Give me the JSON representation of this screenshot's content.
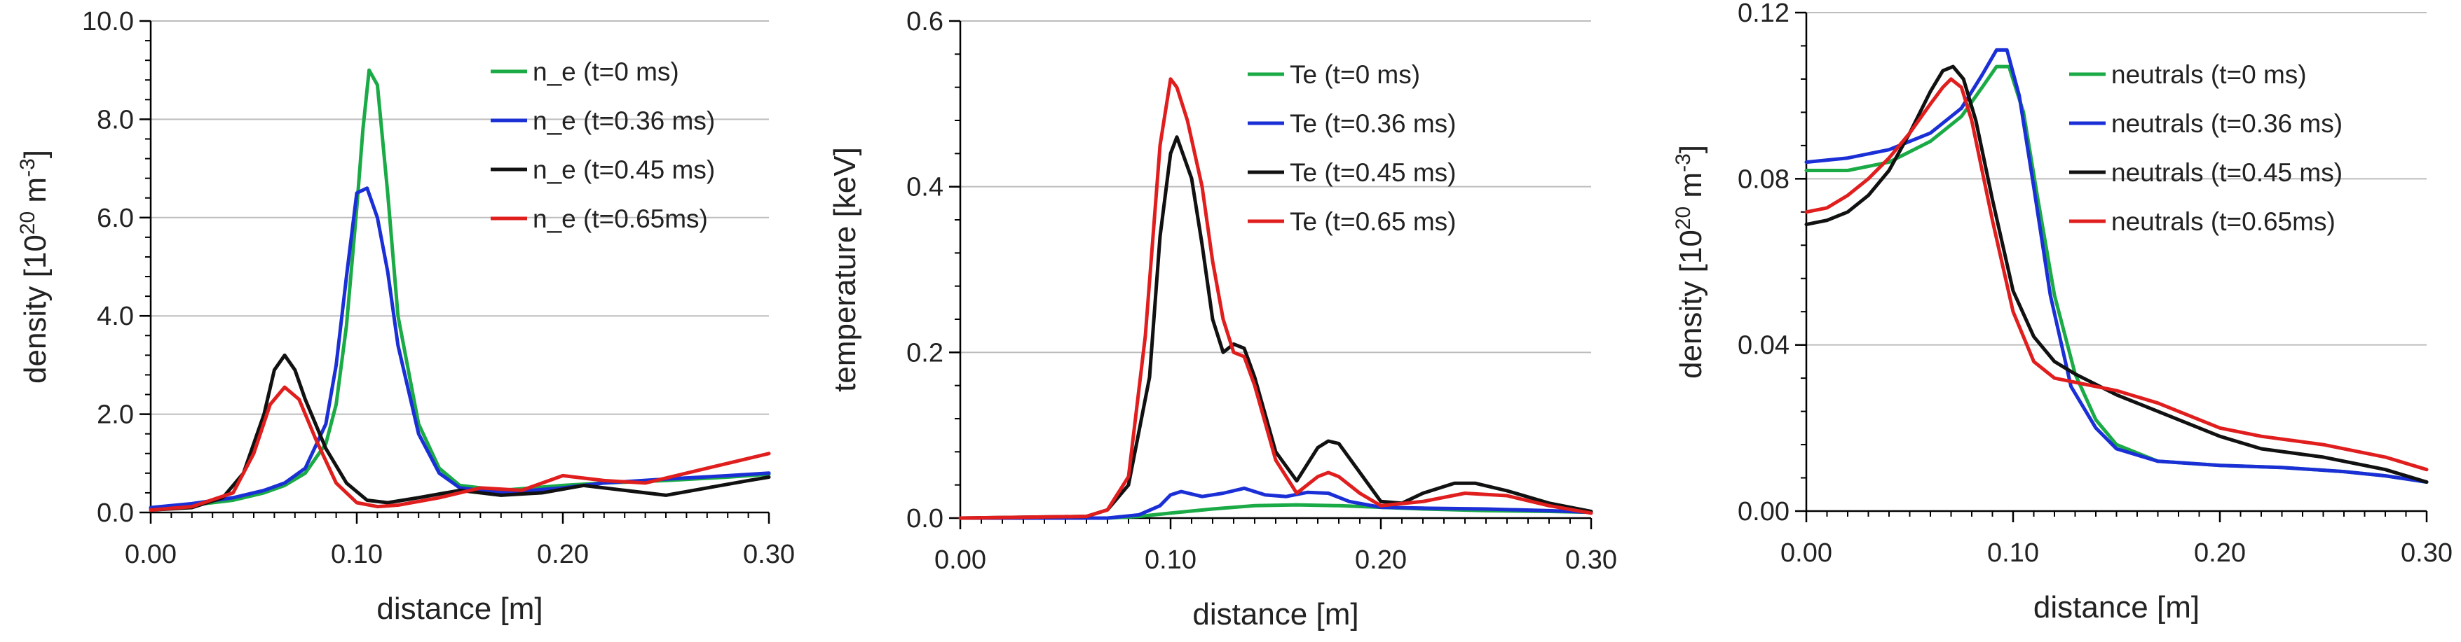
{
  "figure_caption": "",
  "chart_data": [
    {
      "type": "line",
      "title": "",
      "xlabel": "distance [m]",
      "ylabel": {
        "base": "density [10",
        "sup1": "20",
        "mid": " m",
        "sup2": "-3",
        "end": "]"
      },
      "xlim": [
        0,
        0.3
      ],
      "ylim": [
        0,
        10
      ],
      "xticks": [
        0,
        0.1,
        0.2,
        0.3
      ],
      "xtick_labels": [
        "0.00",
        "0.10",
        "0.20",
        "0.30"
      ],
      "yticks": [
        0,
        2,
        4,
        6,
        8,
        10
      ],
      "ytick_labels": [
        "0.0",
        "2.0",
        "4.0",
        "6.0",
        "8.0",
        "10.0"
      ],
      "x_minor_step": 0.01,
      "y_minor_step": 0.4,
      "grid": true,
      "legend_position": "top-right",
      "series": [
        {
          "name": "n_e (t=0 ms)",
          "color": "#1aaa46",
          "x": [
            0,
            0.02,
            0.04,
            0.055,
            0.065,
            0.075,
            0.085,
            0.09,
            0.095,
            0.1,
            0.103,
            0.106,
            0.11,
            0.115,
            0.12,
            0.13,
            0.14,
            0.15,
            0.17,
            0.2,
            0.22,
            0.25,
            0.28,
            0.3
          ],
          "y": [
            0.08,
            0.15,
            0.25,
            0.4,
            0.55,
            0.8,
            1.4,
            2.2,
            3.8,
            6.2,
            7.8,
            9.0,
            8.7,
            6.5,
            4.0,
            1.8,
            0.9,
            0.55,
            0.45,
            0.55,
            0.6,
            0.65,
            0.72,
            0.78
          ]
        },
        {
          "name": "n_e (t=0.36 ms)",
          "color": "#1a2fd6",
          "x": [
            0,
            0.02,
            0.04,
            0.055,
            0.065,
            0.075,
            0.085,
            0.09,
            0.095,
            0.1,
            0.105,
            0.11,
            0.115,
            0.12,
            0.13,
            0.14,
            0.15,
            0.17,
            0.2,
            0.22,
            0.25,
            0.28,
            0.3
          ],
          "y": [
            0.1,
            0.18,
            0.3,
            0.45,
            0.6,
            0.9,
            1.8,
            3.0,
            4.8,
            6.5,
            6.6,
            6.0,
            4.9,
            3.4,
            1.6,
            0.8,
            0.5,
            0.4,
            0.5,
            0.6,
            0.68,
            0.75,
            0.8
          ]
        },
        {
          "name": "n_e (t=0.45 ms)",
          "color": "#111111",
          "x": [
            0,
            0.02,
            0.035,
            0.045,
            0.055,
            0.06,
            0.065,
            0.07,
            0.075,
            0.085,
            0.095,
            0.105,
            0.115,
            0.13,
            0.15,
            0.17,
            0.19,
            0.21,
            0.23,
            0.25,
            0.27,
            0.29,
            0.3
          ],
          "y": [
            0.05,
            0.1,
            0.3,
            0.8,
            2.0,
            2.9,
            3.2,
            2.9,
            2.3,
            1.3,
            0.6,
            0.25,
            0.2,
            0.3,
            0.45,
            0.35,
            0.4,
            0.55,
            0.45,
            0.35,
            0.5,
            0.65,
            0.72
          ]
        },
        {
          "name": "n_e (t=0.65ms)",
          "color": "#e01e1e",
          "x": [
            0,
            0.02,
            0.04,
            0.05,
            0.058,
            0.065,
            0.072,
            0.08,
            0.09,
            0.1,
            0.11,
            0.12,
            0.14,
            0.16,
            0.18,
            0.2,
            0.22,
            0.24,
            0.26,
            0.28,
            0.3
          ],
          "y": [
            0.05,
            0.12,
            0.4,
            1.2,
            2.2,
            2.55,
            2.3,
            1.5,
            0.6,
            0.2,
            0.12,
            0.15,
            0.3,
            0.5,
            0.45,
            0.75,
            0.65,
            0.6,
            0.8,
            1.0,
            1.2
          ]
        }
      ]
    },
    {
      "type": "line",
      "title": "",
      "xlabel": "distance [m]",
      "ylabel": {
        "base": "temperature [keV]"
      },
      "xlim": [
        0,
        0.3
      ],
      "ylim": [
        0,
        0.6
      ],
      "xticks": [
        0,
        0.1,
        0.2,
        0.3
      ],
      "xtick_labels": [
        "0.00",
        "0.10",
        "0.20",
        "0.30"
      ],
      "yticks": [
        0,
        0.2,
        0.4,
        0.6
      ],
      "ytick_labels": [
        "0.0",
        "0.2",
        "0.4",
        "0.6"
      ],
      "x_minor_step": 0.01,
      "y_minor_step": 0.04,
      "grid": true,
      "legend_position": "top-right",
      "series": [
        {
          "name": "Te (t=0 ms)",
          "color": "#1aaa46",
          "x": [
            0,
            0.07,
            0.085,
            0.1,
            0.12,
            0.14,
            0.16,
            0.18,
            0.2,
            0.22,
            0.25,
            0.28,
            0.3
          ],
          "y": [
            0,
            0,
            0.002,
            0.006,
            0.011,
            0.015,
            0.016,
            0.015,
            0.013,
            0.011,
            0.009,
            0.008,
            0.007
          ]
        },
        {
          "name": "Te (t=0.36 ms)",
          "color": "#1a2fd6",
          "x": [
            0,
            0.07,
            0.085,
            0.095,
            0.1,
            0.105,
            0.115,
            0.125,
            0.135,
            0.145,
            0.155,
            0.165,
            0.175,
            0.185,
            0.2,
            0.22,
            0.25,
            0.28,
            0.3
          ],
          "y": [
            0,
            0,
            0.004,
            0.015,
            0.028,
            0.032,
            0.026,
            0.03,
            0.036,
            0.028,
            0.026,
            0.031,
            0.03,
            0.02,
            0.013,
            0.012,
            0.011,
            0.009,
            0.007
          ]
        },
        {
          "name": "Te (t=0.45 ms)",
          "color": "#111111",
          "x": [
            0,
            0.06,
            0.07,
            0.08,
            0.09,
            0.095,
            0.1,
            0.103,
            0.11,
            0.115,
            0.12,
            0.125,
            0.13,
            0.135,
            0.14,
            0.15,
            0.16,
            0.17,
            0.175,
            0.18,
            0.19,
            0.2,
            0.21,
            0.22,
            0.235,
            0.245,
            0.26,
            0.28,
            0.3
          ],
          "y": [
            0,
            0.002,
            0.01,
            0.04,
            0.17,
            0.34,
            0.44,
            0.46,
            0.41,
            0.33,
            0.24,
            0.2,
            0.21,
            0.205,
            0.17,
            0.08,
            0.045,
            0.085,
            0.093,
            0.09,
            0.055,
            0.02,
            0.018,
            0.03,
            0.042,
            0.042,
            0.033,
            0.018,
            0.008
          ]
        },
        {
          "name": "Te (t=0.65 ms)",
          "color": "#e01e1e",
          "x": [
            0,
            0.06,
            0.07,
            0.08,
            0.088,
            0.095,
            0.1,
            0.103,
            0.108,
            0.115,
            0.12,
            0.125,
            0.13,
            0.135,
            0.14,
            0.15,
            0.16,
            0.17,
            0.175,
            0.18,
            0.19,
            0.2,
            0.22,
            0.24,
            0.26,
            0.28,
            0.3
          ],
          "y": [
            0,
            0.002,
            0.01,
            0.05,
            0.22,
            0.45,
            0.53,
            0.52,
            0.48,
            0.4,
            0.31,
            0.24,
            0.2,
            0.195,
            0.16,
            0.07,
            0.03,
            0.05,
            0.055,
            0.05,
            0.03,
            0.015,
            0.02,
            0.03,
            0.027,
            0.015,
            0.006
          ]
        }
      ]
    },
    {
      "type": "line",
      "title": "",
      "xlabel": "distance [m]",
      "ylabel": {
        "base": "density [10",
        "sup1": "20",
        "mid": " m",
        "sup2": "-3",
        "end": "]"
      },
      "xlim": [
        0,
        0.3
      ],
      "ylim": [
        0,
        0.12
      ],
      "xticks": [
        0,
        0.1,
        0.2,
        0.3
      ],
      "xtick_labels": [
        "0.00",
        "0.10",
        "0.20",
        "0.30"
      ],
      "yticks": [
        0,
        0.04,
        0.08,
        0.12
      ],
      "ytick_labels": [
        "0.00",
        "0.04",
        "0.08",
        "0.12"
      ],
      "x_minor_step": 0.01,
      "y_minor_step": 0.008,
      "grid": true,
      "legend_position": "top-right",
      "series": [
        {
          "name": "neutrals (t=0 ms)",
          "color": "#1aaa46",
          "x": [
            0,
            0.02,
            0.04,
            0.06,
            0.075,
            0.085,
            0.092,
            0.098,
            0.105,
            0.112,
            0.12,
            0.13,
            0.14,
            0.15,
            0.17,
            0.2,
            0.23,
            0.26,
            0.28,
            0.3
          ],
          "y": [
            0.082,
            0.082,
            0.084,
            0.089,
            0.095,
            0.102,
            0.107,
            0.107,
            0.096,
            0.075,
            0.052,
            0.033,
            0.022,
            0.016,
            0.012,
            0.011,
            0.0105,
            0.0095,
            0.0085,
            0.007
          ]
        },
        {
          "name": "neutrals (t=0.36 ms)",
          "color": "#1a2fd6",
          "x": [
            0,
            0.02,
            0.04,
            0.06,
            0.075,
            0.085,
            0.092,
            0.097,
            0.103,
            0.11,
            0.118,
            0.128,
            0.14,
            0.15,
            0.17,
            0.2,
            0.23,
            0.26,
            0.28,
            0.3
          ],
          "y": [
            0.084,
            0.085,
            0.087,
            0.091,
            0.097,
            0.105,
            0.111,
            0.111,
            0.1,
            0.078,
            0.052,
            0.03,
            0.02,
            0.015,
            0.012,
            0.011,
            0.0105,
            0.0095,
            0.0085,
            0.007
          ]
        },
        {
          "name": "neutrals (t=0.45 ms)",
          "color": "#111111",
          "x": [
            0,
            0.01,
            0.02,
            0.03,
            0.04,
            0.05,
            0.06,
            0.066,
            0.071,
            0.076,
            0.082,
            0.09,
            0.1,
            0.11,
            0.12,
            0.13,
            0.15,
            0.17,
            0.2,
            0.22,
            0.25,
            0.28,
            0.3
          ],
          "y": [
            0.069,
            0.07,
            0.072,
            0.076,
            0.082,
            0.091,
            0.101,
            0.106,
            0.107,
            0.104,
            0.094,
            0.075,
            0.053,
            0.042,
            0.036,
            0.033,
            0.028,
            0.024,
            0.018,
            0.015,
            0.013,
            0.01,
            0.007
          ]
        },
        {
          "name": "neutrals (t=0.65ms)",
          "color": "#e01e1e",
          "x": [
            0,
            0.01,
            0.02,
            0.03,
            0.04,
            0.05,
            0.06,
            0.066,
            0.07,
            0.075,
            0.08,
            0.09,
            0.1,
            0.11,
            0.12,
            0.13,
            0.15,
            0.17,
            0.2,
            0.22,
            0.25,
            0.28,
            0.3
          ],
          "y": [
            0.072,
            0.073,
            0.076,
            0.08,
            0.085,
            0.091,
            0.098,
            0.102,
            0.104,
            0.102,
            0.094,
            0.07,
            0.048,
            0.036,
            0.032,
            0.031,
            0.029,
            0.026,
            0.02,
            0.018,
            0.016,
            0.013,
            0.01
          ]
        }
      ]
    }
  ]
}
